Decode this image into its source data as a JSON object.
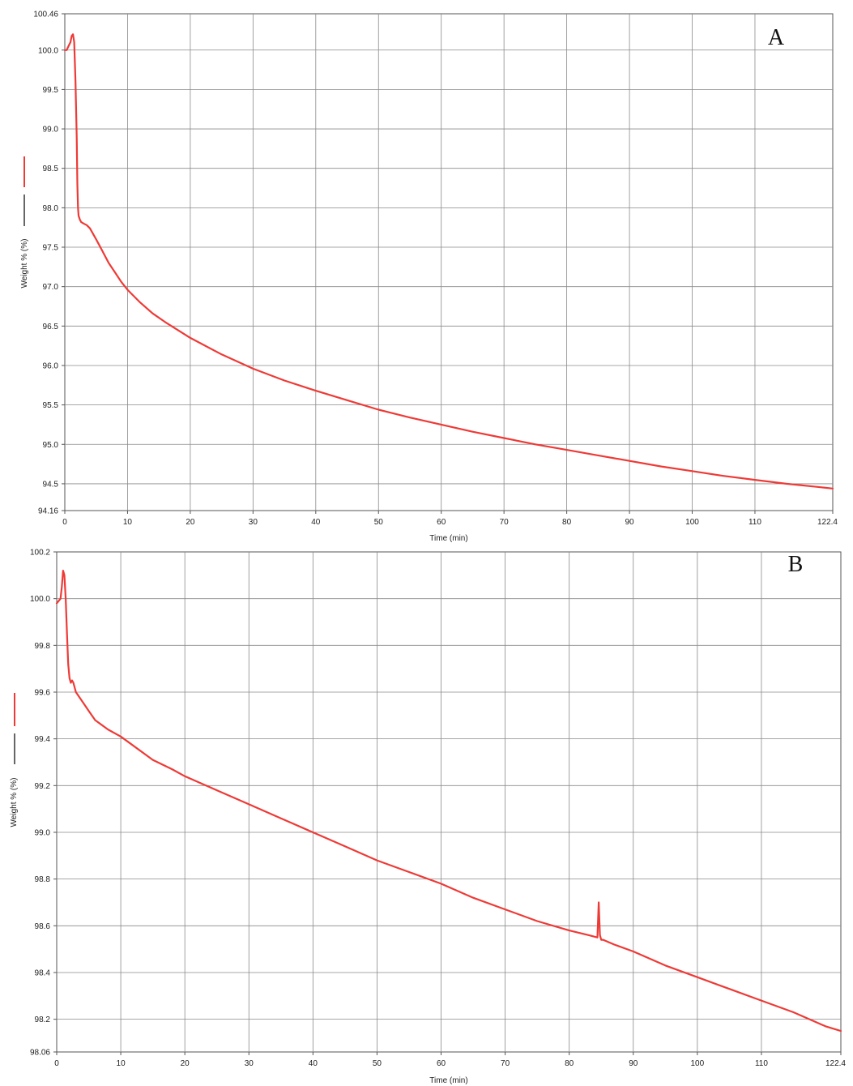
{
  "colors": {
    "series": "#ee3a36",
    "grid": "#8a8a8a",
    "frame": "#555555",
    "legend_second": "#000000"
  },
  "chart_data": [
    {
      "type": "line",
      "panel_label": "A",
      "xlabel": "Time (min)",
      "ylabel": "Weight % (%)",
      "xlim": [
        0,
        122.4
      ],
      "ylim": [
        94.16,
        100.46
      ],
      "xticks": [
        "0",
        "10",
        "20",
        "30",
        "40",
        "50",
        "60",
        "70",
        "80",
        "90",
        "100",
        "110",
        "122.4"
      ],
      "yticks": [
        "94.16",
        "94.5",
        "95.0",
        "95.5",
        "96.0",
        "96.5",
        "97.0",
        "97.5",
        "98.0",
        "98.5",
        "99.0",
        "99.5",
        "100.0",
        "100.46"
      ],
      "grid": true,
      "series": [
        {
          "x": [
            0,
            0.3,
            0.6,
            0.9,
            1.1,
            1.3,
            1.5,
            1.7,
            1.9,
            2.0,
            2.1,
            2.2,
            2.4,
            2.6,
            3,
            3.5,
            4,
            5,
            6,
            7,
            8,
            9,
            10,
            12,
            14,
            16,
            18,
            20,
            25,
            30,
            35,
            40,
            45,
            50,
            55,
            60,
            65,
            70,
            75,
            80,
            85,
            90,
            95,
            100,
            105,
            110,
            115,
            120,
            122.4
          ],
          "y": [
            100.0,
            100.0,
            100.05,
            100.1,
            100.18,
            100.2,
            100.1,
            99.6,
            98.9,
            98.3,
            98.0,
            97.9,
            97.85,
            97.82,
            97.8,
            97.78,
            97.74,
            97.6,
            97.45,
            97.3,
            97.18,
            97.06,
            96.96,
            96.8,
            96.66,
            96.55,
            96.45,
            96.35,
            96.14,
            95.96,
            95.81,
            95.68,
            95.56,
            95.44,
            95.34,
            95.25,
            95.16,
            95.08,
            95.0,
            94.93,
            94.86,
            94.79,
            94.72,
            94.66,
            94.6,
            94.55,
            94.5,
            94.46,
            94.44
          ]
        }
      ]
    },
    {
      "type": "line",
      "panel_label": "B",
      "xlabel": "Time (min)",
      "ylabel": "Weight % (%)",
      "xlim": [
        0,
        122.4
      ],
      "ylim": [
        98.06,
        100.2
      ],
      "xticks": [
        "0",
        "10",
        "20",
        "30",
        "40",
        "50",
        "60",
        "70",
        "80",
        "90",
        "100",
        "110",
        "122.4"
      ],
      "yticks": [
        "98.06",
        "98.2",
        "98.4",
        "98.6",
        "98.8",
        "99.0",
        "99.2",
        "99.4",
        "99.6",
        "99.8",
        "100.0",
        "100.2"
      ],
      "grid": true,
      "series": [
        {
          "x": [
            0,
            0.3,
            0.6,
            0.8,
            1.0,
            1.2,
            1.4,
            1.6,
            1.8,
            2.0,
            2.2,
            2.4,
            2.6,
            3,
            4,
            5,
            6,
            8,
            10,
            12,
            15,
            18,
            20,
            25,
            30,
            35,
            40,
            45,
            50,
            55,
            60,
            65,
            70,
            75,
            80,
            83,
            84.4,
            84.6,
            84.8,
            85.0,
            85.3,
            87,
            90,
            95,
            100,
            105,
            110,
            115,
            120,
            122.4
          ],
          "y": [
            99.98,
            99.99,
            100.0,
            100.05,
            100.12,
            100.1,
            100.0,
            99.85,
            99.72,
            99.66,
            99.64,
            99.65,
            99.64,
            99.6,
            99.56,
            99.52,
            99.48,
            99.44,
            99.41,
            99.37,
            99.31,
            99.27,
            99.24,
            99.18,
            99.12,
            99.06,
            99.0,
            98.94,
            98.88,
            98.83,
            98.78,
            98.72,
            98.67,
            98.62,
            98.58,
            98.56,
            98.55,
            98.7,
            98.56,
            98.54,
            98.54,
            98.52,
            98.49,
            98.43,
            98.38,
            98.33,
            98.28,
            98.23,
            98.17,
            98.15
          ]
        }
      ]
    }
  ]
}
